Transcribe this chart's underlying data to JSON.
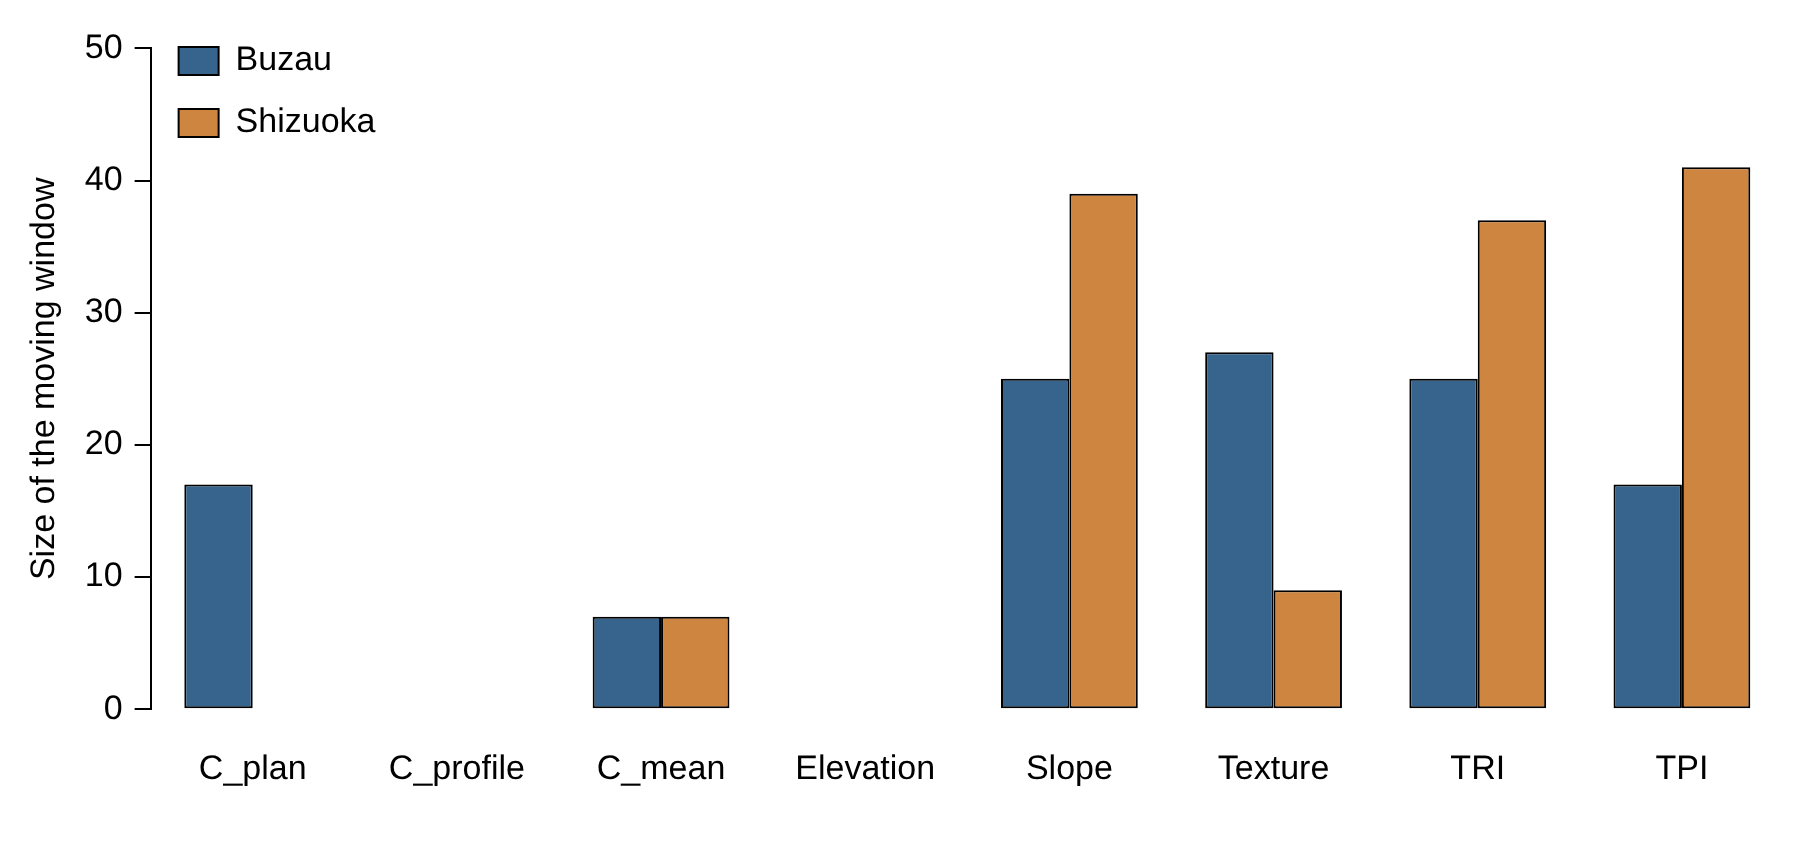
{
  "chart_data": {
    "type": "bar",
    "ylabel": "Size of the moving window",
    "categories": [
      "C_plan",
      "C_profile",
      "C_mean",
      "Elevation",
      "Slope",
      "Texture",
      "TRI",
      "TPI"
    ],
    "series": [
      {
        "name": "Buzau",
        "color": "#37648c",
        "values": [
          17,
          0,
          7,
          0,
          25,
          27,
          25,
          17
        ]
      },
      {
        "name": "Shizuoka",
        "color": "#cd8540",
        "values": [
          0,
          0,
          7,
          0,
          39,
          9,
          37,
          41
        ]
      }
    ],
    "ylim": [
      0,
      50
    ],
    "yticks": [
      0,
      10,
      20,
      30,
      40,
      50
    ],
    "grid": false,
    "legend": "top left"
  }
}
